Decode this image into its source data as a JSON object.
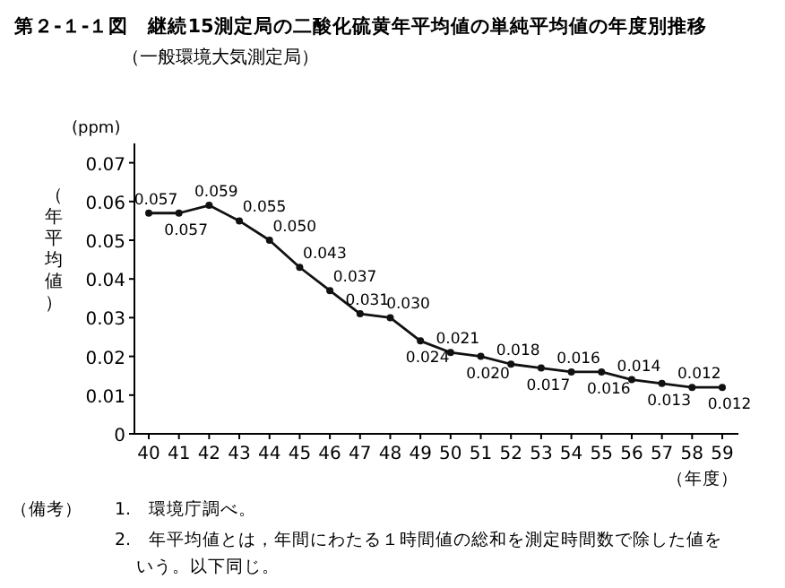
{
  "chart_data": {
    "type": "line",
    "title": "第２-１-１図　継続15測定局の二酸化硫黄年平均値の単純平均値の年度別推移",
    "subtitle": "（一般環境大気測定局）",
    "xlabel": "（年度）",
    "ylabel": "（年平均値）",
    "categories": [
      "40",
      "41",
      "42",
      "43",
      "44",
      "45",
      "46",
      "47",
      "48",
      "49",
      "50",
      "51",
      "52",
      "53",
      "54",
      "55",
      "56",
      "57",
      "58",
      "59"
    ],
    "series": [
      {
        "color": "#111111",
        "values": [
          0.057,
          0.057,
          0.059,
          0.055,
          0.05,
          0.043,
          0.037,
          0.031,
          0.03,
          0.024,
          0.021,
          0.02,
          0.018,
          0.017,
          0.016,
          0.016,
          0.014,
          0.013,
          0.012,
          0.012
        ]
      }
    ],
    "value_labels": [
      "0.057",
      "0.057",
      "0.059",
      "0.055",
      "0.050",
      "0.043",
      "0.037",
      "0.031",
      "0.030",
      "0.024",
      "0.021",
      "0.020",
      "0.018",
      "0.017",
      "0.016",
      "0.016",
      "0.014",
      "0.013",
      "0.012",
      "0.012"
    ],
    "ylim": [
      0,
      0.075
    ],
    "yticks": [
      {
        "value": 0,
        "label": "0"
      },
      {
        "value": 0.01,
        "label": "0.01"
      },
      {
        "value": 0.02,
        "label": "0.02"
      },
      {
        "value": 0.03,
        "label": "0.03"
      },
      {
        "value": 0.04,
        "label": "0.04"
      },
      {
        "value": 0.05,
        "label": "0.05"
      },
      {
        "value": 0.06,
        "label": "0.06"
      },
      {
        "value": 0.07,
        "label": "0.07"
      }
    ],
    "marker": "circle",
    "grid": false,
    "annotations": [
      "(ppm)",
      "（備考）",
      "1.　環境庁調べ。",
      "2.　年平均値とは，年間にわたる１時間値の総和を測定時間数で除した値をいう。以下同じ。"
    ]
  }
}
